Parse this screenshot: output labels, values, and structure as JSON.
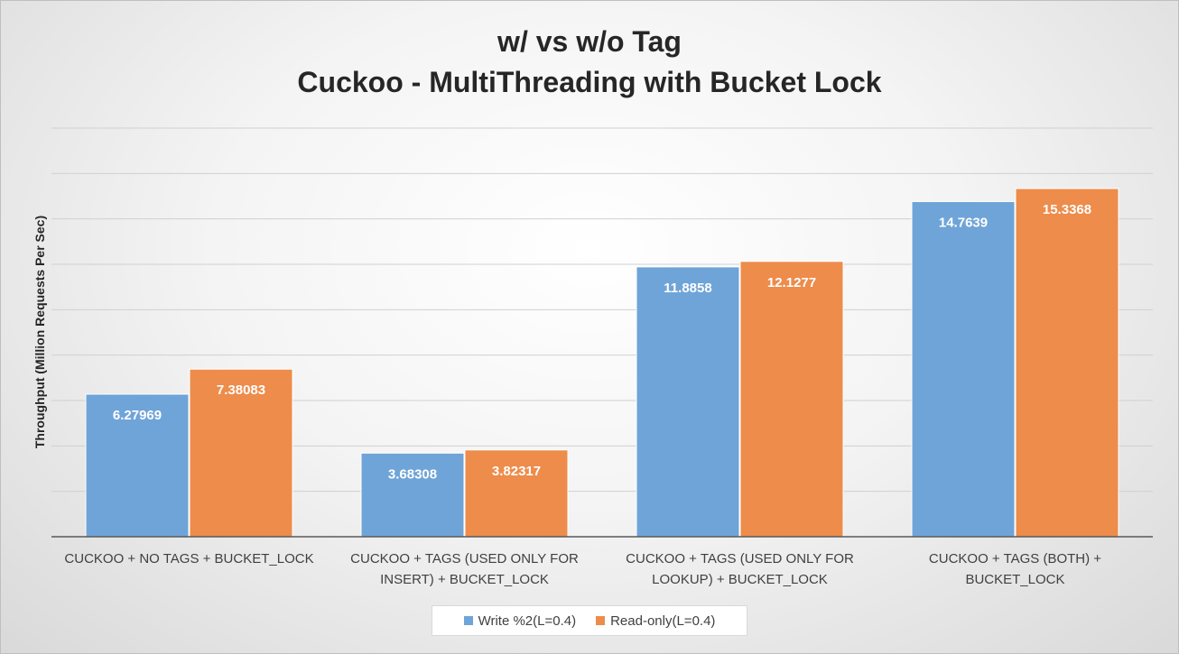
{
  "chart_data": {
    "type": "bar",
    "title": "w/ vs w/o Tag",
    "subtitle": "Cuckoo - MultiThreading with Bucket Lock",
    "ylabel": "Throughput (Million Requests Per Sec)",
    "xlabel": "",
    "ylim": [
      0,
      18
    ],
    "y_tick_step": 2,
    "y_tick_labels_shown": false,
    "grid": true,
    "legend_position": "bottom",
    "categories": [
      [
        "CUCKOO + NO TAGS + BUCKET_LOCK"
      ],
      [
        "CUCKOO + TAGS (USED ONLY FOR",
        "INSERT) + BUCKET_LOCK"
      ],
      [
        "CUCKOO + TAGS (USED ONLY FOR",
        "LOOKUP) + BUCKET_LOCK"
      ],
      [
        "CUCKOO + TAGS (BOTH) +",
        "BUCKET_LOCK"
      ]
    ],
    "series": [
      {
        "name": "Write %2(L=0.4)",
        "color": "#6fa4d8",
        "values": [
          6.27969,
          3.68308,
          11.8858,
          14.7639
        ],
        "labels": [
          "6.27969",
          "3.68308",
          "11.8858",
          "14.7639"
        ]
      },
      {
        "name": "Read-only(L=0.4)",
        "color": "#ed8c4b",
        "values": [
          7.38083,
          3.82317,
          12.1277,
          15.3368
        ],
        "labels": [
          "7.38083",
          "3.82317",
          "12.1277",
          "15.3368"
        ]
      }
    ]
  }
}
